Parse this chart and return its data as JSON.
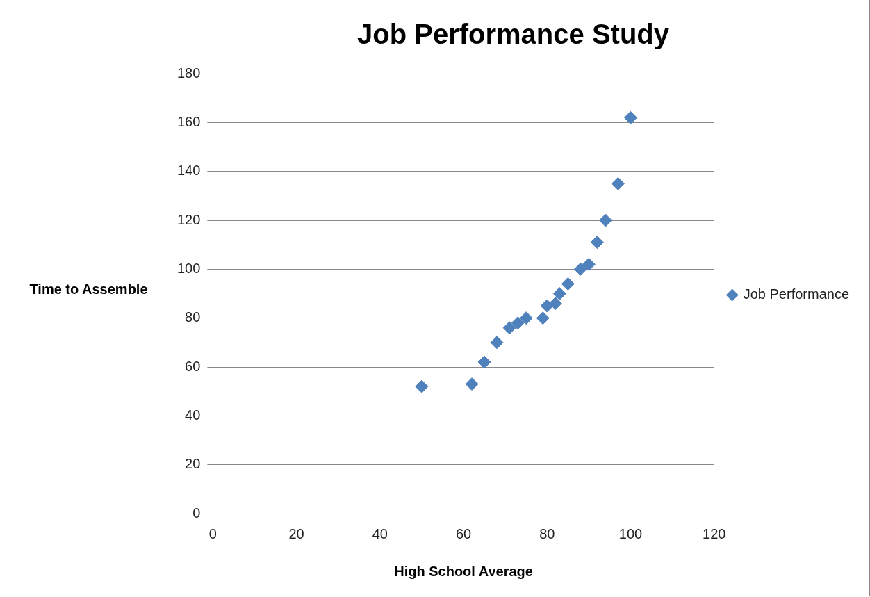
{
  "chart_data": {
    "type": "scatter",
    "title": "Job Performance Study",
    "xlabel": "High School Average",
    "ylabel": "Time to Assemble",
    "series": [
      {
        "name": "Job Performance",
        "color": "#4f81bd",
        "x": [
          50,
          62,
          65,
          68,
          71,
          73,
          75,
          79,
          80,
          82,
          83,
          85,
          88,
          90,
          92,
          94,
          97,
          100
        ],
        "values": [
          52,
          53,
          62,
          70,
          76,
          78,
          80,
          80,
          85,
          86,
          90,
          94,
          100,
          102,
          111,
          120,
          135,
          162
        ]
      }
    ],
    "xlim": [
      0,
      120
    ],
    "xticks": [
      0,
      20,
      40,
      60,
      80,
      100,
      120
    ],
    "ylim": [
      0,
      180
    ],
    "yticks": [
      0,
      20,
      40,
      60,
      80,
      100,
      120,
      140,
      160,
      180
    ],
    "grid": "y",
    "legend": "right",
    "marker": "diamond"
  }
}
